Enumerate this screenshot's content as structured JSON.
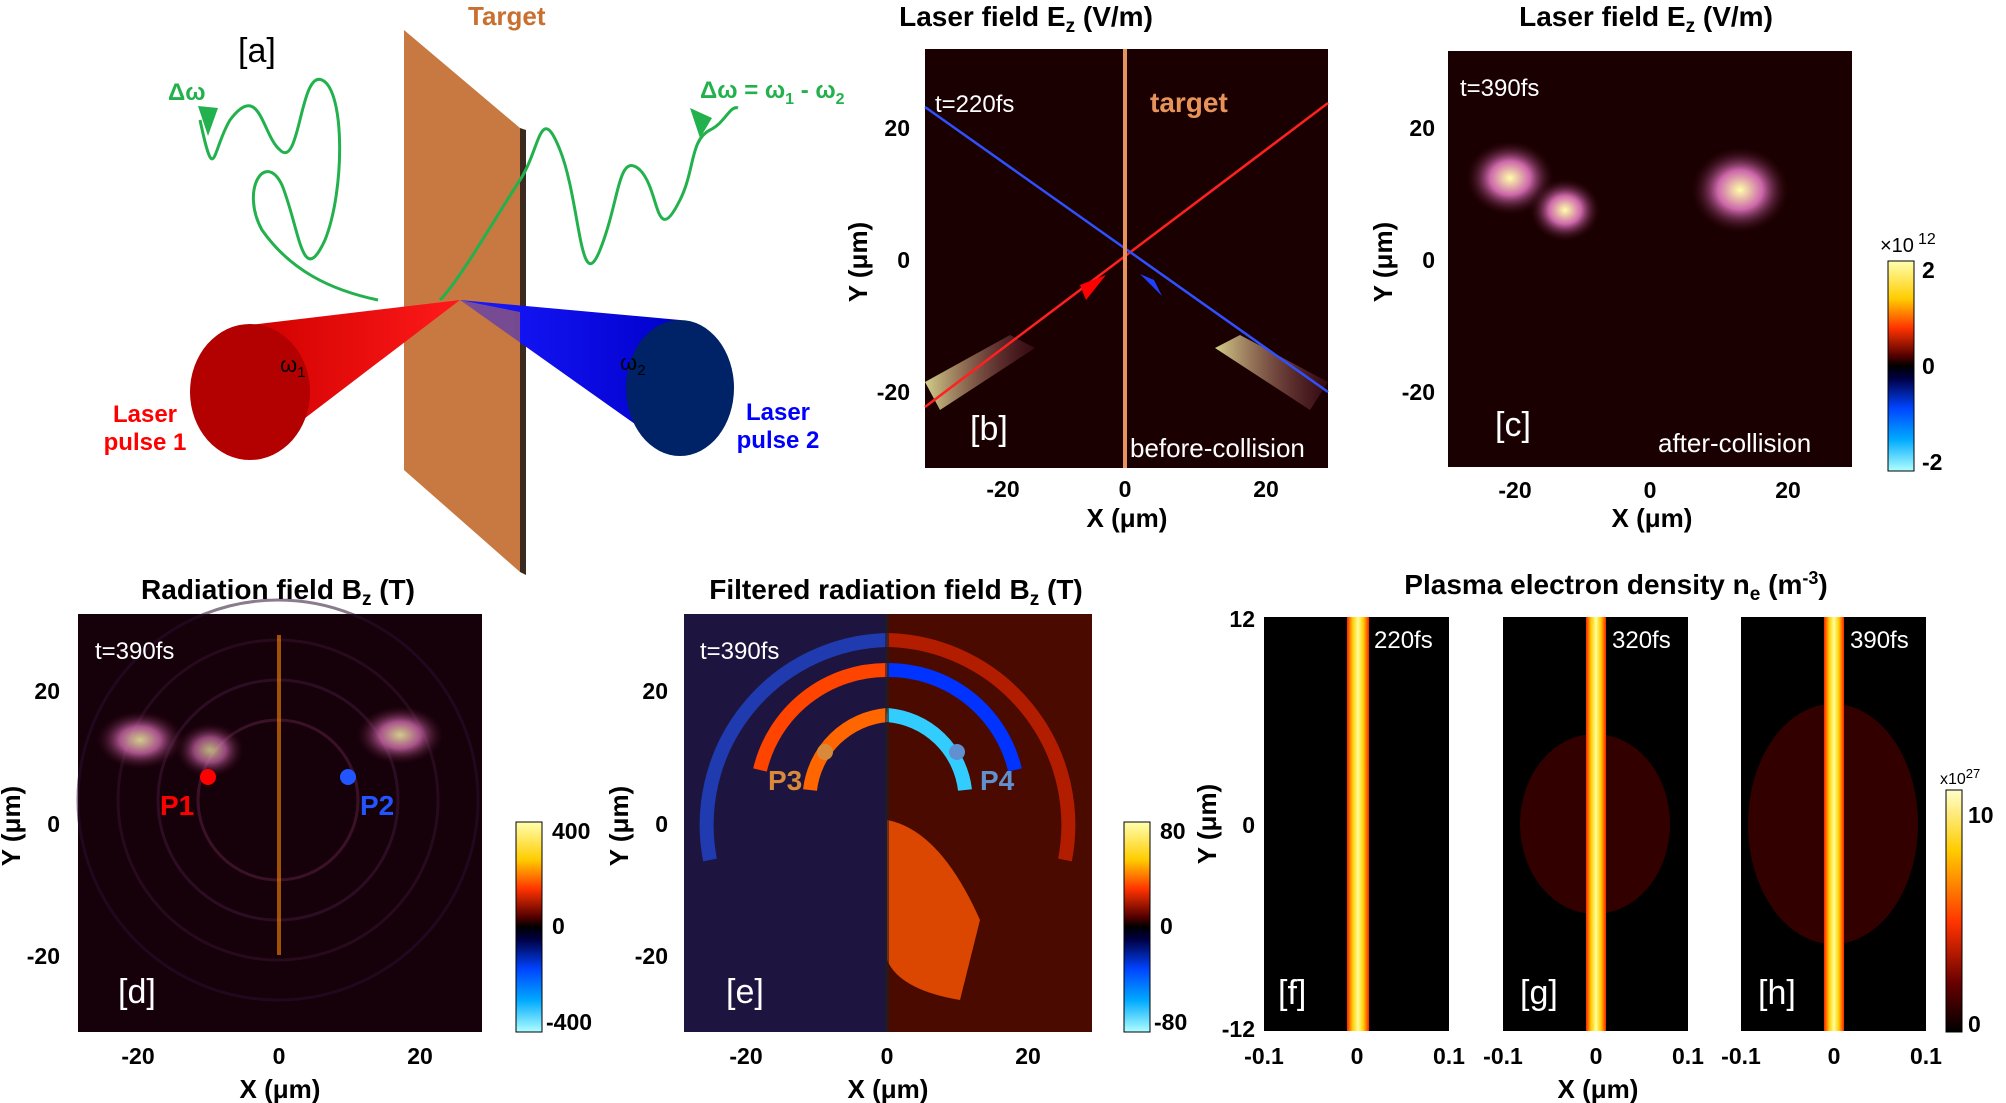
{
  "colors": {
    "laser1": "#ff0000",
    "laser2": "#0000ff",
    "target": "#c87941",
    "target_label": "#c8702f",
    "wave": "#22b14c",
    "bg": "#1a0000"
  },
  "panel_a": {
    "tag": "[a]",
    "target_label": "Target",
    "delta_left": "Δω",
    "delta_right": "Δω = ω",
    "delta_right_sub1": "1",
    "delta_right_mid": " - ω",
    "delta_right_sub2": "2",
    "omega1": "ω",
    "omega1_sub": "1",
    "omega2": "ω",
    "omega2_sub": "2",
    "laser1_line1": "Laser",
    "laser1_line2": "pulse 1",
    "laser2_line1": "Laser",
    "laser2_line2": "pulse 2"
  },
  "panel_b": {
    "title": "Laser field E",
    "title_sub": "z",
    "title_unit": " (V/m)",
    "time": "t=220fs",
    "target": "target",
    "tag": "[b]",
    "note": "before-collision",
    "xlabel": "X (μm)",
    "ylabel": "Y (μm)",
    "xticks": [
      "-20",
      "0",
      "20"
    ],
    "yticks": [
      "20",
      "0",
      "-20"
    ]
  },
  "panel_c": {
    "title": "Laser field E",
    "title_sub": "z",
    "title_unit": " (V/m)",
    "time": "t=390fs",
    "tag": "[c]",
    "note": "after-collision",
    "xlabel": "X (μm)",
    "ylabel": "Y (μm)",
    "xticks": [
      "-20",
      "0",
      "20"
    ],
    "yticks": [
      "20",
      "0",
      "-20"
    ],
    "cbar_exp_base": "×10",
    "cbar_exp_pow": "12",
    "cbar_ticks": [
      "2",
      "0",
      "-2"
    ]
  },
  "panel_d": {
    "title": "Radiation field B",
    "title_sub": "z",
    "title_unit": " (T)",
    "time": "t=390fs",
    "tag": "[d]",
    "p1": "P1",
    "p2": "P2",
    "xlabel": "X (μm)",
    "ylabel": "Y (μm)",
    "xticks": [
      "-20",
      "0",
      "20"
    ],
    "yticks": [
      "20",
      "0",
      "-20"
    ],
    "cbar_ticks": [
      "400",
      "0",
      "-400"
    ]
  },
  "panel_e": {
    "title": "Filtered radiation field B",
    "title_sub": "z",
    "title_unit": " (T)",
    "time": "t=390fs",
    "tag": "[e]",
    "p3": "P3",
    "p4": "P4",
    "xlabel": "X (μm)",
    "ylabel": "Y (μm)",
    "xticks": [
      "-20",
      "0",
      "20"
    ],
    "yticks": [
      "20",
      "0",
      "-20"
    ],
    "cbar_ticks": [
      "80",
      "0",
      "-80"
    ]
  },
  "panel_fgh": {
    "title": "Plasma electron density n",
    "title_sub": "e",
    "title_unit": " (m",
    "title_sup": "-3",
    "title_end": ")",
    "ylabel": "Y (μm)",
    "xlabel": "X (μm)",
    "yticks": [
      "12",
      "0",
      "-12"
    ],
    "xticks": [
      "-0.1",
      "0",
      "0.1"
    ],
    "cbar_exp_base": "x10",
    "cbar_exp_pow": "27",
    "cbar_ticks": [
      "10",
      "0"
    ],
    "subpanels": [
      {
        "tag": "[f]",
        "time": "220fs"
      },
      {
        "tag": "[g]",
        "time": "320fs"
      },
      {
        "tag": "[h]",
        "time": "390fs"
      }
    ]
  }
}
